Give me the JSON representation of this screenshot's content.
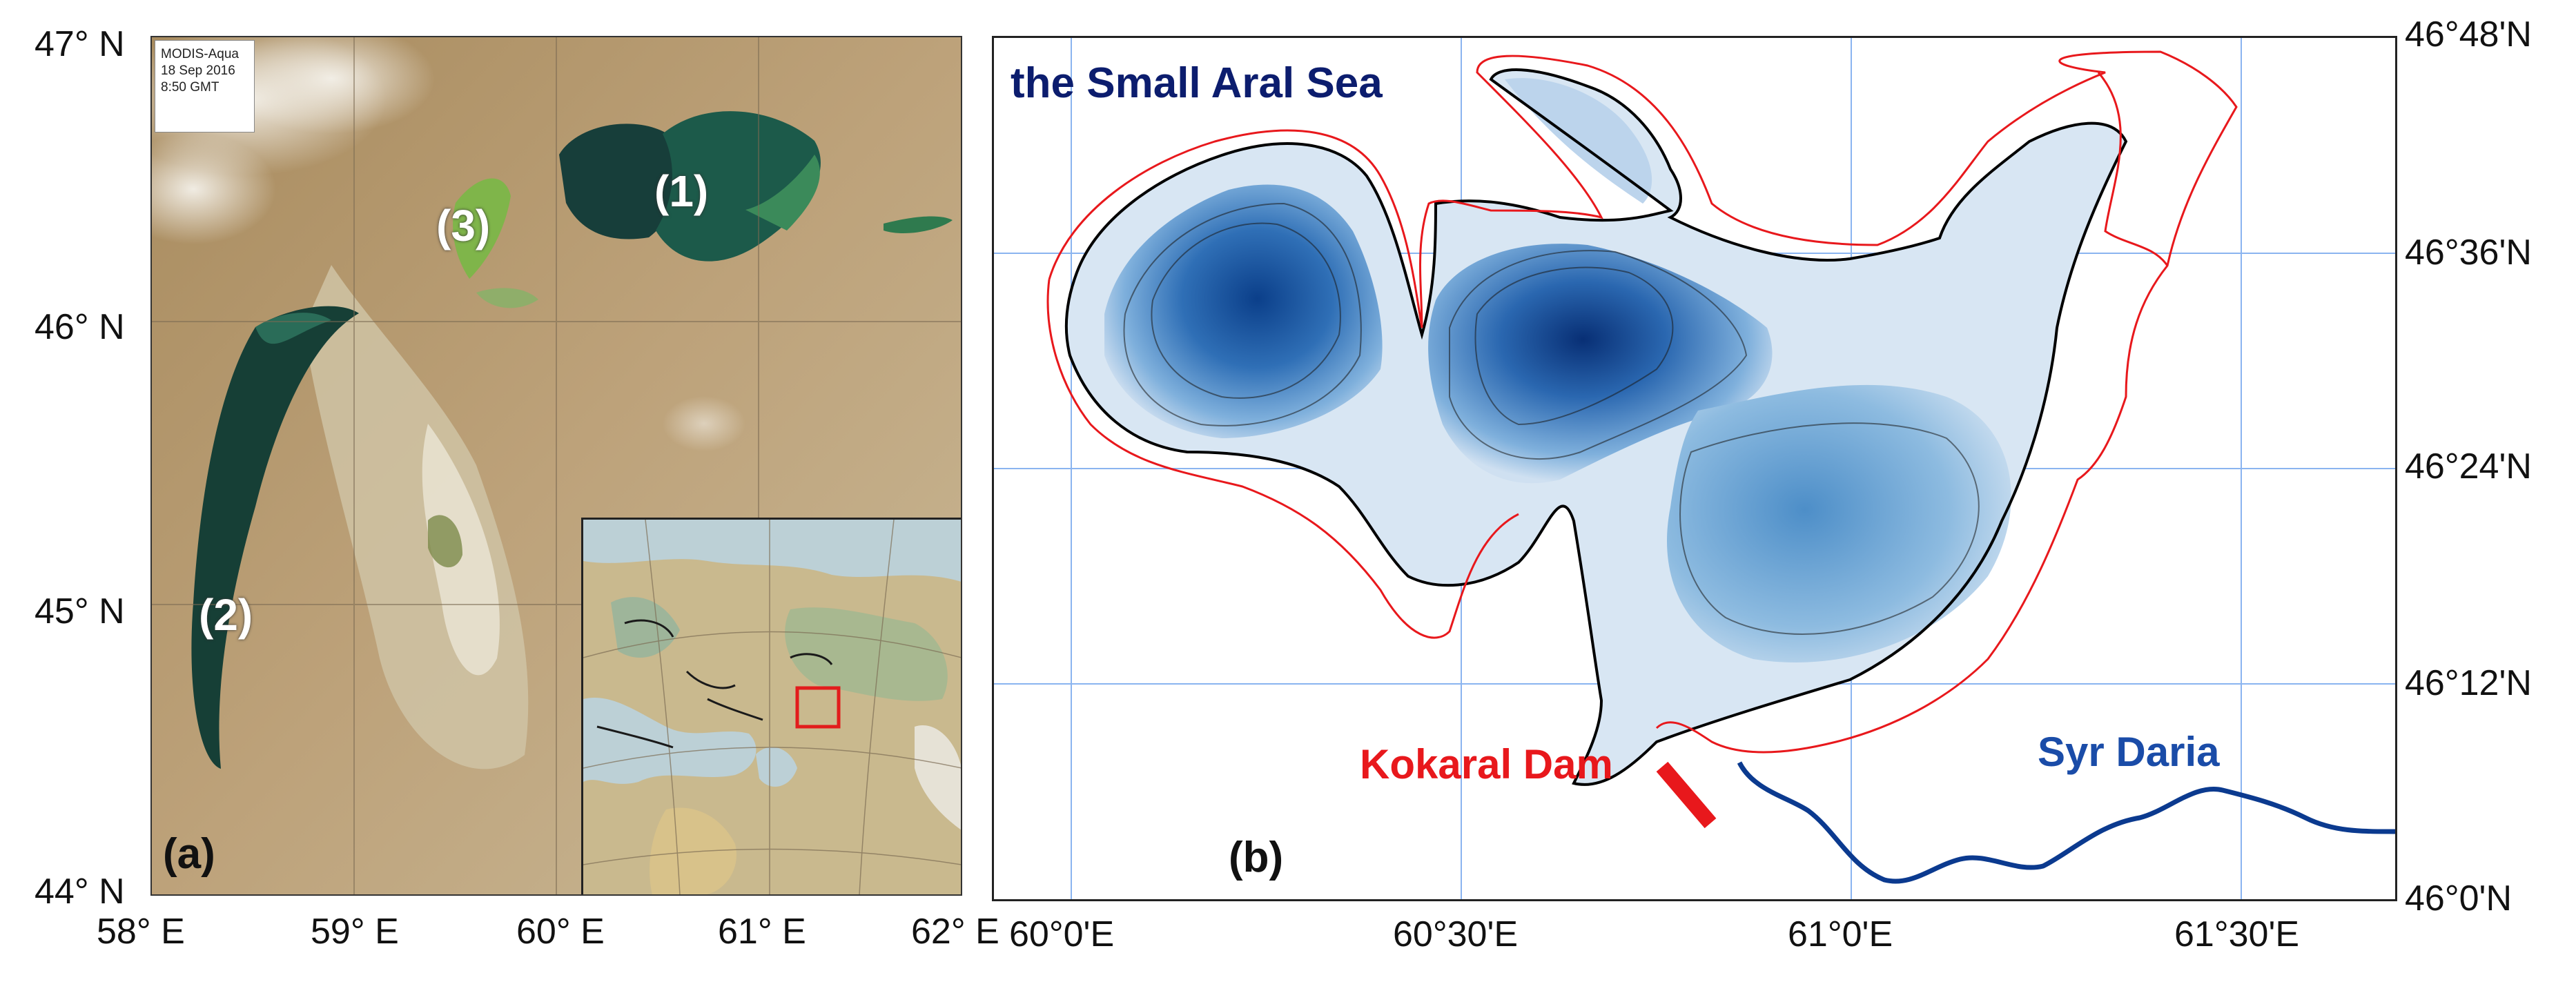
{
  "panel_a": {
    "letter": "(a)",
    "modis_lines": [
      "MODIS-Aqua",
      "18 Sep 2016",
      "8:50 GMT"
    ],
    "region_labels": [
      "(1)",
      "(2)",
      "(3)"
    ],
    "lat_ticks": [
      "47° N",
      "46° N",
      "45° N",
      "44° N"
    ],
    "lon_ticks": [
      "58° E",
      "59° E",
      "60° E",
      "61° E",
      "62° E"
    ],
    "colors": {
      "sea": "#1a5a4a",
      "desert": "#b89a6c",
      "lake_green": "#7fb54a",
      "inset_box": "#e21c1c"
    }
  },
  "panel_b": {
    "letter": "(b)",
    "title": "the Small Aral Sea",
    "dam_label": "Kokaral Dam",
    "river_label": "Syr Daria",
    "lat_ticks": [
      "46°48'N",
      "46°36'N",
      "46°24'N",
      "46°12'N",
      "46°0'N"
    ],
    "lon_ticks": [
      "60°0'E",
      "60°30'E",
      "61°0'E",
      "61°30'E"
    ],
    "colors": {
      "deep": "#0b3f8a",
      "mid": "#4d8ec8",
      "shallow": "#d8e6f3",
      "coast_old": "#e8181c",
      "coast_current": "#000000",
      "river": "#0b3a8f",
      "grid": "#8ab4f0"
    }
  }
}
